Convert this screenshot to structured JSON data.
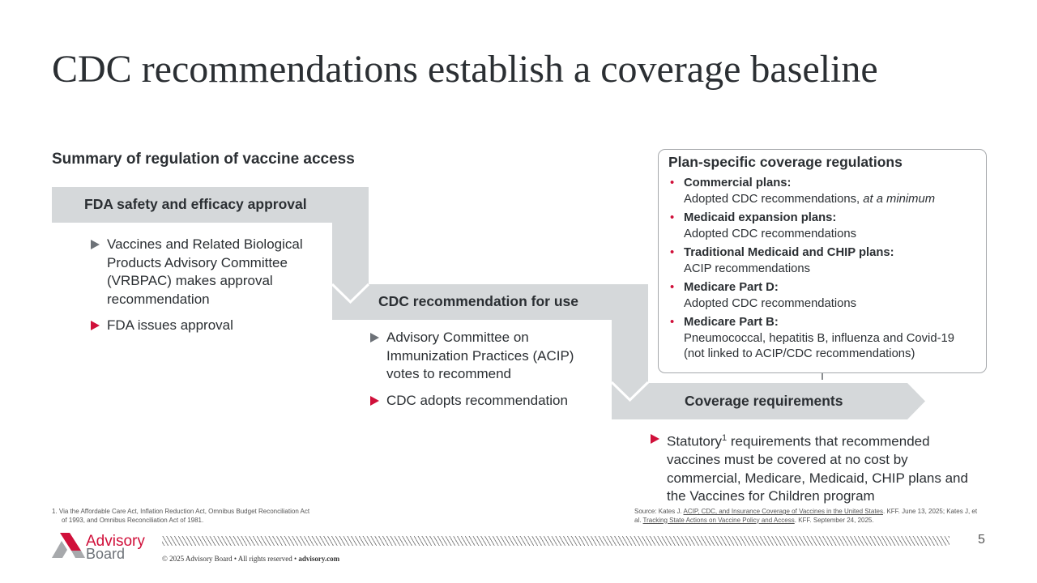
{
  "title": "CDC recommendations establish a coverage baseline",
  "subtitle": "Summary of regulation of vaccine access",
  "colors": {
    "accent": "#d0103a",
    "step_fill": "#d5d8da",
    "text": "#2b2f33",
    "bullet_gray": "#6d7278"
  },
  "steps": [
    {
      "heading": "FDA safety and efficacy approval",
      "bullets": [
        {
          "text": "Vaccines and Related Biological Products Advisory Committee (VRBPAC) makes approval recommendation",
          "marker": "gray-triangle"
        },
        {
          "text": "FDA issues approval",
          "marker": "red-triangle"
        }
      ]
    },
    {
      "heading": "CDC recommendation for use",
      "bullets": [
        {
          "text": "Advisory Committee on Immunization Practices (ACIP) votes to recommend",
          "marker": "gray-triangle"
        },
        {
          "text": "CDC adopts recommendation",
          "marker": "red-triangle"
        }
      ]
    },
    {
      "heading": "Coverage requirements",
      "bullets": [
        {
          "text_before": "Statutory",
          "superscript": "1",
          "text_after": " requirements that recommended vaccines must be covered at no cost by commercial, Medicare, Medicaid, CHIP plans and the Vaccines for Children program",
          "marker": "red-triangle"
        }
      ]
    }
  ],
  "plan_box": {
    "title": "Plan-specific coverage regulations",
    "items": [
      {
        "label": "Commercial plans:",
        "text": "Adopted CDC recommendations, ",
        "emphasis": "at a minimum"
      },
      {
        "label": "Medicaid expansion plans:",
        "text": "Adopted CDC recommendations"
      },
      {
        "label": "Traditional Medicaid and CHIP plans:",
        "text": "ACIP recommendations"
      },
      {
        "label": "Medicare Part D:",
        "text": "Adopted CDC recommendations"
      },
      {
        "label": "Medicare Part B:",
        "text": "Pneumococcal, hepatitis B, influenza and Covid-19 (not linked to ACIP/CDC recommendations)"
      }
    ]
  },
  "footnote": "1.  Via the Affordable Care Act, Inflation Reduction Act, Omnibus Budget Reconciliation Act of 1993, and Omnibus Reconciliation Act of 1981.",
  "source": {
    "prefix": "Source: Kates J. ",
    "link1": "ACIP, CDC, and Insurance Coverage of Vaccines in the United States",
    "mid": ". KFF. June 13, 2025; Kates J, et al. ",
    "link2": "Tracking State Actions on Vaccine Policy and Access",
    "suffix": ". KFF. September 24, 2025."
  },
  "footer": {
    "logo_line1": "Advisory",
    "logo_line2": "Board",
    "copyright": "© 2025 Advisory Board • All rights reserved • ",
    "site": "advisory.com",
    "page_number": "5"
  }
}
